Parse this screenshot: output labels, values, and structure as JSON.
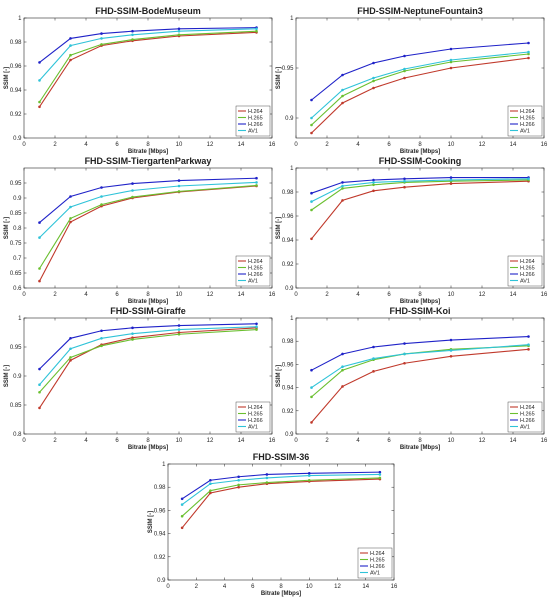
{
  "colors": {
    "h264": "#c0392b",
    "h265": "#6abf2f",
    "h266": "#1f22c8",
    "av1": "#2fc3d8"
  },
  "chart_data": [
    {
      "type": "line",
      "title": "FHD-SSIM-BodeMuseum",
      "xlabel": "Bitrate [Mbps]",
      "ylabel": "SSIM [-]",
      "xlim": [
        0,
        16
      ],
      "ylim": [
        0.9,
        1.0
      ],
      "xticks": [
        0,
        2,
        4,
        6,
        8,
        10,
        12,
        14,
        16
      ],
      "yticks": [
        0.9,
        0.92,
        0.94,
        0.96,
        0.98,
        1
      ],
      "legend": "bottom-right",
      "grid": false,
      "x": [
        1,
        3,
        5,
        7,
        10,
        15
      ],
      "series": [
        {
          "name": "H.264",
          "values": [
            0.926,
            0.965,
            0.977,
            0.981,
            0.985,
            0.988
          ]
        },
        {
          "name": "H.265",
          "values": [
            0.93,
            0.969,
            0.978,
            0.982,
            0.986,
            0.989
          ]
        },
        {
          "name": "H.266",
          "values": [
            0.963,
            0.983,
            0.987,
            0.989,
            0.991,
            0.992
          ]
        },
        {
          "name": "AV1",
          "values": [
            0.948,
            0.977,
            0.983,
            0.986,
            0.989,
            0.991
          ]
        }
      ]
    },
    {
      "type": "line",
      "title": "FHD-SSIM-NeptuneFountain3",
      "xlabel": "Bitrate [Mbps]",
      "ylabel": "SSIM [-]",
      "xlim": [
        0,
        16
      ],
      "ylim": [
        0.88,
        1.0
      ],
      "xticks": [
        0,
        2,
        4,
        6,
        8,
        10,
        12,
        14,
        16
      ],
      "yticks": [
        0.9,
        0.95,
        1
      ],
      "legend": "bottom-right",
      "grid": false,
      "x": [
        1,
        3,
        5,
        7,
        10,
        15
      ],
      "series": [
        {
          "name": "H.264",
          "values": [
            0.885,
            0.915,
            0.93,
            0.94,
            0.95,
            0.96
          ]
        },
        {
          "name": "H.265",
          "values": [
            0.893,
            0.922,
            0.937,
            0.947,
            0.956,
            0.964
          ]
        },
        {
          "name": "H.266",
          "values": [
            0.918,
            0.943,
            0.955,
            0.962,
            0.969,
            0.975
          ]
        },
        {
          "name": "AV1",
          "values": [
            0.9,
            0.928,
            0.94,
            0.949,
            0.958,
            0.966
          ]
        }
      ]
    },
    {
      "type": "line",
      "title": "FHD-SSIM-TiergartenParkway",
      "xlabel": "Bitrate [Mbps]",
      "ylabel": "SSIM [-]",
      "xlim": [
        0,
        16
      ],
      "ylim": [
        0.6,
        1.0
      ],
      "xticks": [
        0,
        2,
        4,
        6,
        8,
        10,
        12,
        14,
        16
      ],
      "yticks": [
        0.6,
        0.65,
        0.7,
        0.75,
        0.8,
        0.85,
        0.9,
        0.95
      ],
      "legend": "bottom-right",
      "grid": false,
      "x": [
        1,
        3,
        5,
        7,
        10,
        15
      ],
      "series": [
        {
          "name": "H.264",
          "values": [
            0.623,
            0.82,
            0.873,
            0.9,
            0.92,
            0.94
          ]
        },
        {
          "name": "H.265",
          "values": [
            0.665,
            0.832,
            0.878,
            0.903,
            0.922,
            0.942
          ]
        },
        {
          "name": "H.266",
          "values": [
            0.818,
            0.905,
            0.935,
            0.948,
            0.958,
            0.966
          ]
        },
        {
          "name": "AV1",
          "values": [
            0.768,
            0.87,
            0.905,
            0.925,
            0.94,
            0.952
          ]
        }
      ]
    },
    {
      "type": "line",
      "title": "FHD-SSIM-Cooking",
      "xlabel": "Bitrate [Mbps]",
      "ylabel": "SSIM [-]",
      "xlim": [
        0,
        16
      ],
      "ylim": [
        0.9,
        1.0
      ],
      "xticks": [
        0,
        2,
        4,
        6,
        8,
        10,
        12,
        14,
        16
      ],
      "yticks": [
        0.9,
        0.92,
        0.94,
        0.96,
        0.98,
        1
      ],
      "legend": "bottom-right",
      "grid": false,
      "x": [
        1,
        3,
        5,
        7,
        10,
        15
      ],
      "series": [
        {
          "name": "H.264",
          "values": [
            0.941,
            0.973,
            0.981,
            0.984,
            0.987,
            0.989
          ]
        },
        {
          "name": "H.265",
          "values": [
            0.965,
            0.983,
            0.986,
            0.988,
            0.989,
            0.99
          ]
        },
        {
          "name": "H.266",
          "values": [
            0.979,
            0.988,
            0.99,
            0.991,
            0.992,
            0.992
          ]
        },
        {
          "name": "AV1",
          "values": [
            0.972,
            0.985,
            0.988,
            0.989,
            0.99,
            0.991
          ]
        }
      ]
    },
    {
      "type": "line",
      "title": "FHD-SSIM-Giraffe",
      "xlabel": "Bitrate [Mbps]",
      "ylabel": "SSIM [-]",
      "xlim": [
        0,
        16
      ],
      "ylim": [
        0.8,
        1.0
      ],
      "xticks": [
        0,
        2,
        4,
        6,
        8,
        10,
        12,
        14,
        16
      ],
      "yticks": [
        0.8,
        0.85,
        0.9,
        0.95,
        1
      ],
      "legend": "bottom-right",
      "grid": false,
      "x": [
        1,
        3,
        5,
        7,
        10,
        15
      ],
      "series": [
        {
          "name": "H.264",
          "values": [
            0.845,
            0.927,
            0.954,
            0.966,
            0.975,
            0.983
          ]
        },
        {
          "name": "H.265",
          "values": [
            0.872,
            0.932,
            0.952,
            0.963,
            0.972,
            0.98
          ]
        },
        {
          "name": "H.266",
          "values": [
            0.912,
            0.965,
            0.978,
            0.983,
            0.987,
            0.99
          ]
        },
        {
          "name": "AV1",
          "values": [
            0.885,
            0.947,
            0.965,
            0.973,
            0.98,
            0.985
          ]
        }
      ]
    },
    {
      "type": "line",
      "title": "FHD-SSIM-Koi",
      "xlabel": "Bitrate [Mbps]",
      "ylabel": "SSIM [-]",
      "xlim": [
        0,
        16
      ],
      "ylim": [
        0.9,
        1.0
      ],
      "xticks": [
        0,
        2,
        4,
        6,
        8,
        10,
        12,
        14,
        16
      ],
      "yticks": [
        0.9,
        0.92,
        0.94,
        0.96,
        0.98,
        1
      ],
      "legend": "bottom-right",
      "grid": false,
      "x": [
        1,
        3,
        5,
        7,
        10,
        15
      ],
      "series": [
        {
          "name": "H.264",
          "values": [
            0.91,
            0.941,
            0.954,
            0.961,
            0.967,
            0.973
          ]
        },
        {
          "name": "H.265",
          "values": [
            0.932,
            0.955,
            0.964,
            0.969,
            0.973,
            0.976
          ]
        },
        {
          "name": "H.266",
          "values": [
            0.955,
            0.969,
            0.975,
            0.978,
            0.981,
            0.984
          ]
        },
        {
          "name": "AV1",
          "values": [
            0.94,
            0.958,
            0.965,
            0.969,
            0.972,
            0.977
          ]
        }
      ]
    },
    {
      "type": "line",
      "title": "FHD-SSIM-36",
      "xlabel": "Bitrate [Mbps]",
      "ylabel": "SSIM [-]",
      "xlim": [
        0,
        16
      ],
      "ylim": [
        0.9,
        1.0
      ],
      "xticks": [
        0,
        2,
        4,
        6,
        8,
        10,
        12,
        14,
        16
      ],
      "yticks": [
        0.9,
        0.92,
        0.94,
        0.96,
        0.98,
        1
      ],
      "legend": "bottom-right",
      "grid": false,
      "x": [
        1,
        3,
        5,
        7,
        10,
        15
      ],
      "series": [
        {
          "name": "H.264",
          "values": [
            0.945,
            0.975,
            0.98,
            0.983,
            0.985,
            0.987
          ]
        },
        {
          "name": "H.265",
          "values": [
            0.955,
            0.977,
            0.982,
            0.984,
            0.986,
            0.988
          ]
        },
        {
          "name": "H.266",
          "values": [
            0.97,
            0.986,
            0.989,
            0.991,
            0.992,
            0.993
          ]
        },
        {
          "name": "AV1",
          "values": [
            0.965,
            0.983,
            0.986,
            0.988,
            0.99,
            0.991
          ]
        }
      ]
    }
  ]
}
